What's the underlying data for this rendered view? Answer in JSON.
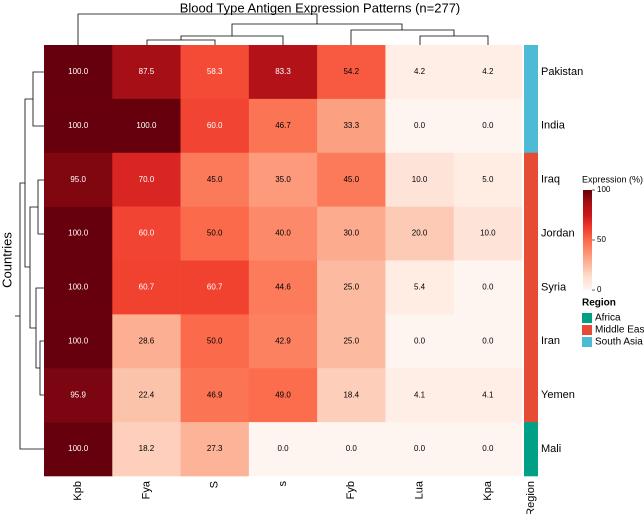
{
  "chart_data": {
    "type": "heatmap",
    "title": "Blood Type Antigen Expression Patterns (n=277)",
    "ylabel": "Countries",
    "columns": [
      "Kpb",
      "Fya",
      "S",
      "s",
      "Fyb",
      "Lua",
      "Kpa"
    ],
    "rows": [
      "Pakistan",
      "India",
      "Iraq",
      "Jordan",
      "Syria",
      "Iran",
      "Yemen",
      "Mali"
    ],
    "values": [
      [
        100,
        87.5,
        58.3,
        83.3,
        54.2,
        4.2,
        4.2
      ],
      [
        100,
        100,
        60,
        46.7,
        33.3,
        0,
        0
      ],
      [
        95,
        70,
        45,
        35,
        45,
        10,
        5
      ],
      [
        100,
        60,
        50,
        40,
        30,
        20,
        10
      ],
      [
        100,
        60.7,
        60.7,
        44.6,
        25,
        5.4,
        0
      ],
      [
        100,
        28.6,
        50,
        42.9,
        25,
        0,
        0
      ],
      [
        95.9,
        22.4,
        46.9,
        49,
        18.4,
        4.1,
        4.1
      ],
      [
        100,
        18.2,
        27.3,
        0,
        0,
        0,
        0
      ]
    ],
    "value_labels": [
      [
        "100.0",
        "87.5",
        "58.3",
        "83.3",
        "54.2",
        "4.2",
        "4.2"
      ],
      [
        "100.0",
        "100.0",
        "60.0",
        "46.7",
        "33.3",
        "0.0",
        "0.0"
      ],
      [
        "95.0",
        "70.0",
        "45.0",
        "35.0",
        "45.0",
        "10.0",
        "5.0"
      ],
      [
        "100.0",
        "60.0",
        "50.0",
        "40.0",
        "30.0",
        "20.0",
        "10.0"
      ],
      [
        "100.0",
        "60.7",
        "60.7",
        "44.6",
        "25.0",
        "5.4",
        "0.0"
      ],
      [
        "100.0",
        "28.6",
        "50.0",
        "42.9",
        "25.0",
        "0.0",
        "0.0"
      ],
      [
        "95.9",
        "22.4",
        "46.9",
        "49.0",
        "18.4",
        "4.1",
        "4.1"
      ],
      [
        "100.0",
        "18.2",
        "27.3",
        "0.0",
        "0.0",
        "0.0",
        "0.0"
      ]
    ],
    "colormap": [
      "#fff5f0",
      "#fee0d2",
      "#fcbba1",
      "#fc9272",
      "#fb6a4a",
      "#ef3b2c",
      "#cb181d",
      "#a50f15",
      "#67000d"
    ],
    "clim": [
      0,
      100
    ],
    "cticks": [
      0,
      50,
      100
    ],
    "colorbar_title": "Expression (%)",
    "row_group_label": "Region",
    "row_groups": [
      "South Asia",
      "South Asia",
      "Middle East",
      "Middle East",
      "Middle East",
      "Middle East",
      "Middle East",
      "Africa"
    ],
    "legend": {
      "title": "Region",
      "items": [
        {
          "name": "Africa",
          "color": "#00a087"
        },
        {
          "name": "Middle East",
          "color": "#e64b35"
        },
        {
          "name": "South Asia",
          "color": "#4dbbd5"
        }
      ]
    }
  }
}
